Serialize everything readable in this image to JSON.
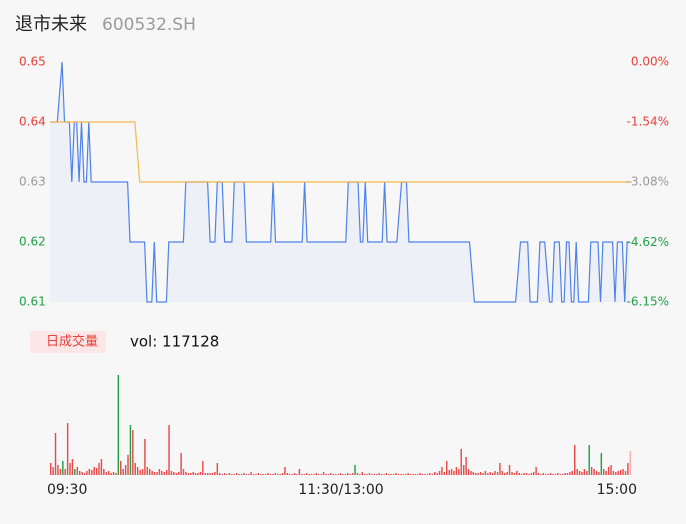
{
  "header": {
    "title": "退市未来",
    "code": "600532.SH"
  },
  "chart_data": [
    {
      "type": "line",
      "xlim": [
        0,
        240
      ],
      "ylim": [
        0.61,
        0.65
      ],
      "yticks": [
        0.65,
        0.64,
        0.63,
        0.62,
        0.61
      ],
      "ytick_colors": [
        "#e8413a",
        "#e8413a",
        "#9a9a9a",
        "#21a047",
        "#21a047"
      ],
      "y2lim": [
        -6.15,
        0
      ],
      "y2ticks": [
        {
          "value": 0,
          "label": "0.00%"
        },
        {
          "value": -1.54,
          "label": "-1.54%"
        },
        {
          "value": -3.08,
          "label": "-3.08%"
        },
        {
          "value": -4.62,
          "label": "-4.62%"
        },
        {
          "value": -6.15,
          "label": "-6.15%"
        }
      ],
      "y2tick_colors": [
        "#e8413a",
        "#e8413a",
        "#9a9a9a",
        "#21a047",
        "#21a047"
      ],
      "area_color": "#eef0f7",
      "series": [
        {
          "color": "#4f82ea",
          "x": [
            0,
            3,
            5,
            6,
            8,
            9,
            10,
            11,
            12,
            13,
            14,
            15,
            16,
            17,
            32,
            33,
            39,
            40,
            42,
            43,
            44,
            48,
            49,
            55,
            56,
            65,
            66,
            68,
            69,
            71,
            72,
            75,
            76,
            80,
            81,
            91,
            92,
            93,
            104,
            105,
            106,
            122,
            123,
            127,
            128,
            129,
            130,
            131,
            137,
            138,
            139,
            143,
            145,
            147,
            148,
            173,
            175,
            192,
            194,
            197,
            198,
            201,
            202,
            204,
            206,
            207,
            208,
            210,
            211,
            212,
            213,
            214,
            215,
            216,
            217,
            218,
            222,
            223,
            226,
            227,
            228,
            232,
            233,
            234,
            236,
            237,
            238,
            239
          ],
          "values": [
            0.64,
            0.64,
            0.65,
            0.64,
            0.64,
            0.63,
            0.64,
            0.64,
            0.63,
            0.64,
            0.63,
            0.63,
            0.64,
            0.63,
            0.63,
            0.62,
            0.62,
            0.61,
            0.61,
            0.62,
            0.61,
            0.61,
            0.62,
            0.62,
            0.63,
            0.63,
            0.62,
            0.62,
            0.63,
            0.63,
            0.62,
            0.62,
            0.63,
            0.63,
            0.62,
            0.62,
            0.63,
            0.62,
            0.62,
            0.63,
            0.62,
            0.62,
            0.63,
            0.63,
            0.62,
            0.62,
            0.63,
            0.62,
            0.62,
            0.63,
            0.62,
            0.62,
            0.63,
            0.63,
            0.62,
            0.62,
            0.61,
            0.61,
            0.62,
            0.62,
            0.61,
            0.61,
            0.62,
            0.62,
            0.61,
            0.61,
            0.62,
            0.62,
            0.61,
            0.61,
            0.62,
            0.62,
            0.61,
            0.61,
            0.62,
            0.61,
            0.61,
            0.62,
            0.62,
            0.61,
            0.62,
            0.62,
            0.61,
            0.62,
            0.62,
            0.61,
            0.62,
            0.62
          ]
        },
        {
          "color": "#f4b94d",
          "x": [
            0,
            35,
            37,
            240
          ],
          "values": [
            0.64,
            0.64,
            0.63,
            0.63
          ]
        }
      ]
    },
    {
      "type": "bar",
      "label": "日成交量",
      "volume_text": "vol: 117128",
      "xlim": [
        0,
        240
      ],
      "ylim": [
        0,
        100000
      ],
      "xticks": [
        {
          "value": 0,
          "label": "09:30"
        },
        {
          "value": 120,
          "label": "11:30/13:00"
        },
        {
          "value": 240,
          "label": "15:00"
        }
      ],
      "values": [
        12000,
        8000,
        42000,
        10000,
        6000,
        14000,
        6000,
        52000,
        12000,
        16000,
        6000,
        8000,
        4000,
        3000,
        2000,
        4000,
        6000,
        5000,
        8000,
        7000,
        12000,
        16000,
        6000,
        3000,
        4000,
        2000,
        3000,
        2000,
        100000,
        14000,
        6000,
        10000,
        20000,
        50000,
        45000,
        12000,
        8000,
        5000,
        6000,
        36000,
        8000,
        6000,
        4000,
        3000,
        3000,
        6000,
        4000,
        3000,
        5000,
        50000,
        4000,
        3000,
        2000,
        3000,
        22000,
        6000,
        3000,
        2000,
        2000,
        3000,
        2000,
        2000,
        3000,
        14000,
        2000,
        2000,
        2000,
        2000,
        3000,
        12000,
        2000,
        1000,
        2000,
        1000,
        2000,
        1000,
        1000,
        2000,
        1000,
        1000,
        2000,
        1000,
        1000,
        3000,
        1000,
        1000,
        2000,
        1000,
        1000,
        1000,
        2000,
        1000,
        1000,
        2000,
        1000,
        1000,
        2000,
        8000,
        2000,
        1000,
        1000,
        2000,
        1000,
        6000,
        1000,
        1000,
        2000,
        1000,
        1000,
        1000,
        2000,
        1000,
        1000,
        3000,
        1000,
        1000,
        2000,
        1000,
        1000,
        1000,
        2000,
        1000,
        1000,
        2000,
        1000,
        2000,
        10000,
        2000,
        1000,
        3000,
        1000,
        1000,
        2000,
        1000,
        1000,
        1000,
        2000,
        1000,
        1000,
        2000,
        1000,
        1000,
        1000,
        2000,
        1000,
        1000,
        1000,
        1000,
        2000,
        1000,
        1000,
        1000,
        1000,
        2000,
        1000,
        1000,
        1000,
        2000,
        1000,
        3000,
        2000,
        4000,
        8000,
        3000,
        14000,
        5000,
        6000,
        4000,
        8000,
        6000,
        26000,
        10000,
        18000,
        6000,
        4000,
        3000,
        2000,
        2000,
        3000,
        2000,
        4000,
        2000,
        3000,
        2000,
        4000,
        3000,
        12000,
        4000,
        2000,
        3000,
        10000,
        3000,
        2000,
        4000,
        2000,
        1000,
        2000,
        2000,
        1000,
        2000,
        3000,
        8000,
        2000,
        1000,
        2000,
        1000,
        1000,
        2000,
        1000,
        1000,
        2000,
        1000,
        1000,
        2000,
        2000,
        3000,
        4000,
        30000,
        6000,
        4000,
        3000,
        6000,
        4000,
        30000,
        8000,
        6000,
        4000,
        3000,
        22000,
        6000,
        4000,
        8000,
        10000,
        4000,
        3000,
        4000,
        5000,
        6000,
        4000,
        12000,
        24000
      ],
      "colors": [
        "#e84a4a",
        "#e84a4a",
        "#e84a4a",
        "#e84a4a",
        "#e84a4a",
        "#21a047",
        "#e84a4a",
        "#e84a4a",
        "#e84a4a",
        "#e84a4a",
        "#21a047",
        "#e84a4a",
        "#e84a4a",
        "#e84a4a",
        "#e84a4a",
        "#e84a4a",
        "#e84a4a",
        "#e84a4a",
        "#e84a4a",
        "#e84a4a",
        "#e84a4a",
        "#e84a4a",
        "#e84a4a",
        "#e84a4a",
        "#e84a4a",
        "#e84a4a",
        "#e84a4a",
        "#e84a4a",
        "#21a047",
        "#e84a4a",
        "#e84a4a",
        "#e84a4a",
        "#e84a4a",
        "#21a047",
        "#e84a4a",
        "#e84a4a",
        "#e84a4a",
        "#e84a4a",
        "#e84a4a",
        "#e84a4a",
        "#e84a4a",
        "#e84a4a",
        "#e84a4a",
        "#e84a4a",
        "#e84a4a",
        "#e84a4a",
        "#e84a4a",
        "#e84a4a",
        "#e84a4a",
        "#e84a4a",
        "#e84a4a",
        "#e84a4a",
        "#e84a4a",
        "#e84a4a",
        "#e84a4a",
        "#e84a4a",
        "#e84a4a",
        "#e84a4a",
        "#e84a4a",
        "#e84a4a",
        "#e84a4a",
        "#e84a4a",
        "#e84a4a",
        "#e84a4a",
        "#e84a4a",
        "#e84a4a",
        "#e84a4a",
        "#e84a4a",
        "#e84a4a",
        "#e84a4a",
        "#e84a4a",
        "#e84a4a",
        "#e84a4a",
        "#e84a4a",
        "#e84a4a",
        "#e84a4a",
        "#e84a4a",
        "#e84a4a",
        "#e84a4a",
        "#e84a4a",
        "#e84a4a",
        "#e84a4a",
        "#e84a4a",
        "#e84a4a",
        "#e84a4a",
        "#e84a4a",
        "#e84a4a",
        "#e84a4a",
        "#e84a4a",
        "#e84a4a",
        "#e84a4a",
        "#e84a4a",
        "#e84a4a",
        "#e84a4a",
        "#e84a4a",
        "#e84a4a",
        "#e84a4a",
        "#e84a4a",
        "#e84a4a",
        "#e84a4a",
        "#e84a4a",
        "#e84a4a",
        "#e84a4a",
        "#e84a4a",
        "#e84a4a",
        "#e84a4a",
        "#e84a4a",
        "#e84a4a",
        "#e84a4a",
        "#e84a4a",
        "#e84a4a",
        "#e84a4a",
        "#e84a4a",
        "#e84a4a",
        "#e84a4a",
        "#e84a4a",
        "#e84a4a",
        "#e84a4a",
        "#e84a4a",
        "#e84a4a",
        "#e84a4a",
        "#e84a4a",
        "#e84a4a",
        "#e84a4a",
        "#e84a4a",
        "#e84a4a",
        "#21a047",
        "#e84a4a",
        "#e84a4a",
        "#e84a4a",
        "#e84a4a",
        "#e84a4a",
        "#e84a4a",
        "#e84a4a",
        "#e84a4a",
        "#e84a4a",
        "#e84a4a",
        "#e84a4a",
        "#e84a4a",
        "#e84a4a",
        "#e84a4a",
        "#e84a4a",
        "#e84a4a",
        "#e84a4a",
        "#e84a4a",
        "#e84a4a",
        "#e84a4a",
        "#e84a4a",
        "#e84a4a",
        "#e84a4a",
        "#e84a4a",
        "#e84a4a",
        "#e84a4a",
        "#e84a4a",
        "#e84a4a",
        "#e84a4a",
        "#e84a4a",
        "#e84a4a",
        "#e84a4a",
        "#e84a4a",
        "#e84a4a",
        "#e84a4a",
        "#e84a4a",
        "#e84a4a",
        "#e84a4a",
        "#e84a4a",
        "#e84a4a",
        "#e84a4a",
        "#e84a4a",
        "#e84a4a",
        "#e84a4a",
        "#e84a4a",
        "#e84a4a",
        "#e84a4a",
        "#e84a4a",
        "#e84a4a",
        "#e84a4a",
        "#e84a4a",
        "#e84a4a",
        "#e84a4a",
        "#e84a4a",
        "#e84a4a",
        "#e84a4a",
        "#e84a4a",
        "#e84a4a",
        "#e84a4a",
        "#e84a4a",
        "#e84a4a",
        "#e84a4a",
        "#e84a4a",
        "#e84a4a",
        "#e84a4a",
        "#e84a4a",
        "#e84a4a",
        "#e84a4a",
        "#e84a4a",
        "#e84a4a",
        "#e84a4a",
        "#e84a4a",
        "#e84a4a",
        "#e84a4a",
        "#e84a4a",
        "#e84a4a",
        "#e84a4a",
        "#e84a4a",
        "#e84a4a",
        "#e84a4a",
        "#e84a4a",
        "#e84a4a",
        "#e84a4a",
        "#e84a4a",
        "#e84a4a",
        "#e84a4a",
        "#e84a4a",
        "#e84a4a",
        "#e84a4a",
        "#e84a4a",
        "#e84a4a",
        "#e84a4a",
        "#e84a4a",
        "#e84a4a",
        "#e84a4a",
        "#e84a4a",
        "#21a047",
        "#e84a4a",
        "#e84a4a",
        "#e84a4a",
        "#e84a4a",
        "#21a047",
        "#e84a4a",
        "#e84a4a",
        "#e84a4a",
        "#e84a4a",
        "#e84a4a",
        "#e84a4a",
        "#e84a4a",
        "#e84a4a",
        "#e84a4a",
        "#e84a4a",
        "#e84a4a",
        "#f5b0b0"
      ]
    }
  ]
}
